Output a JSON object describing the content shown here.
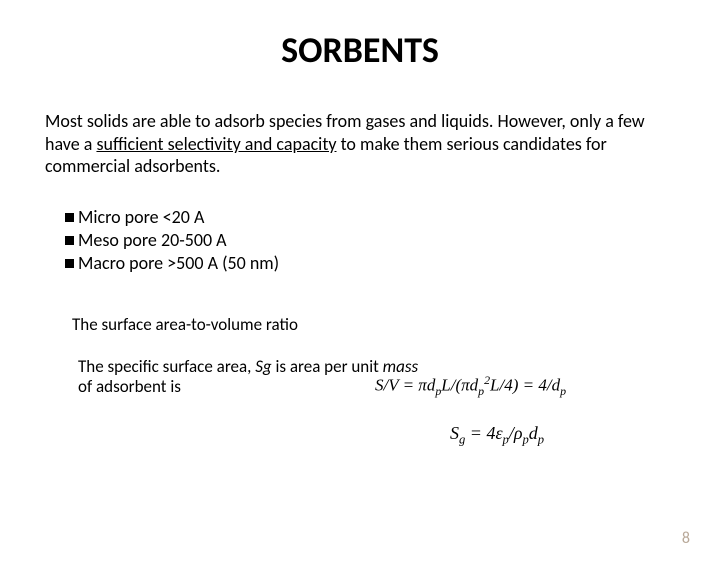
{
  "title": "SORBENTS",
  "intro": {
    "part1": "Most solids are able to adsorb species from gases and liquids. However, only a few have a ",
    "underlined": "sufficient selectivity and capacity",
    "part2": " to make them serious candidates for commercial adsorbents."
  },
  "bullets": [
    "Micro pore  <20 A",
    "Meso pore  20-500 A",
    "Macro pore >500 A (50 nm)"
  ],
  "ratio_label": "The surface area-to-volume ratio",
  "specific_label": {
    "p1": "The specific surface area, ",
    "p2": "Sg",
    "p3": " is area per unit ",
    "p4": "mass",
    "p5": " of adsorbent is"
  },
  "page_number": "8",
  "colors": {
    "text": "#000000",
    "page_num": "#b8a898",
    "background": "#ffffff"
  },
  "fonts": {
    "body_size": 18,
    "title_size": 36
  }
}
